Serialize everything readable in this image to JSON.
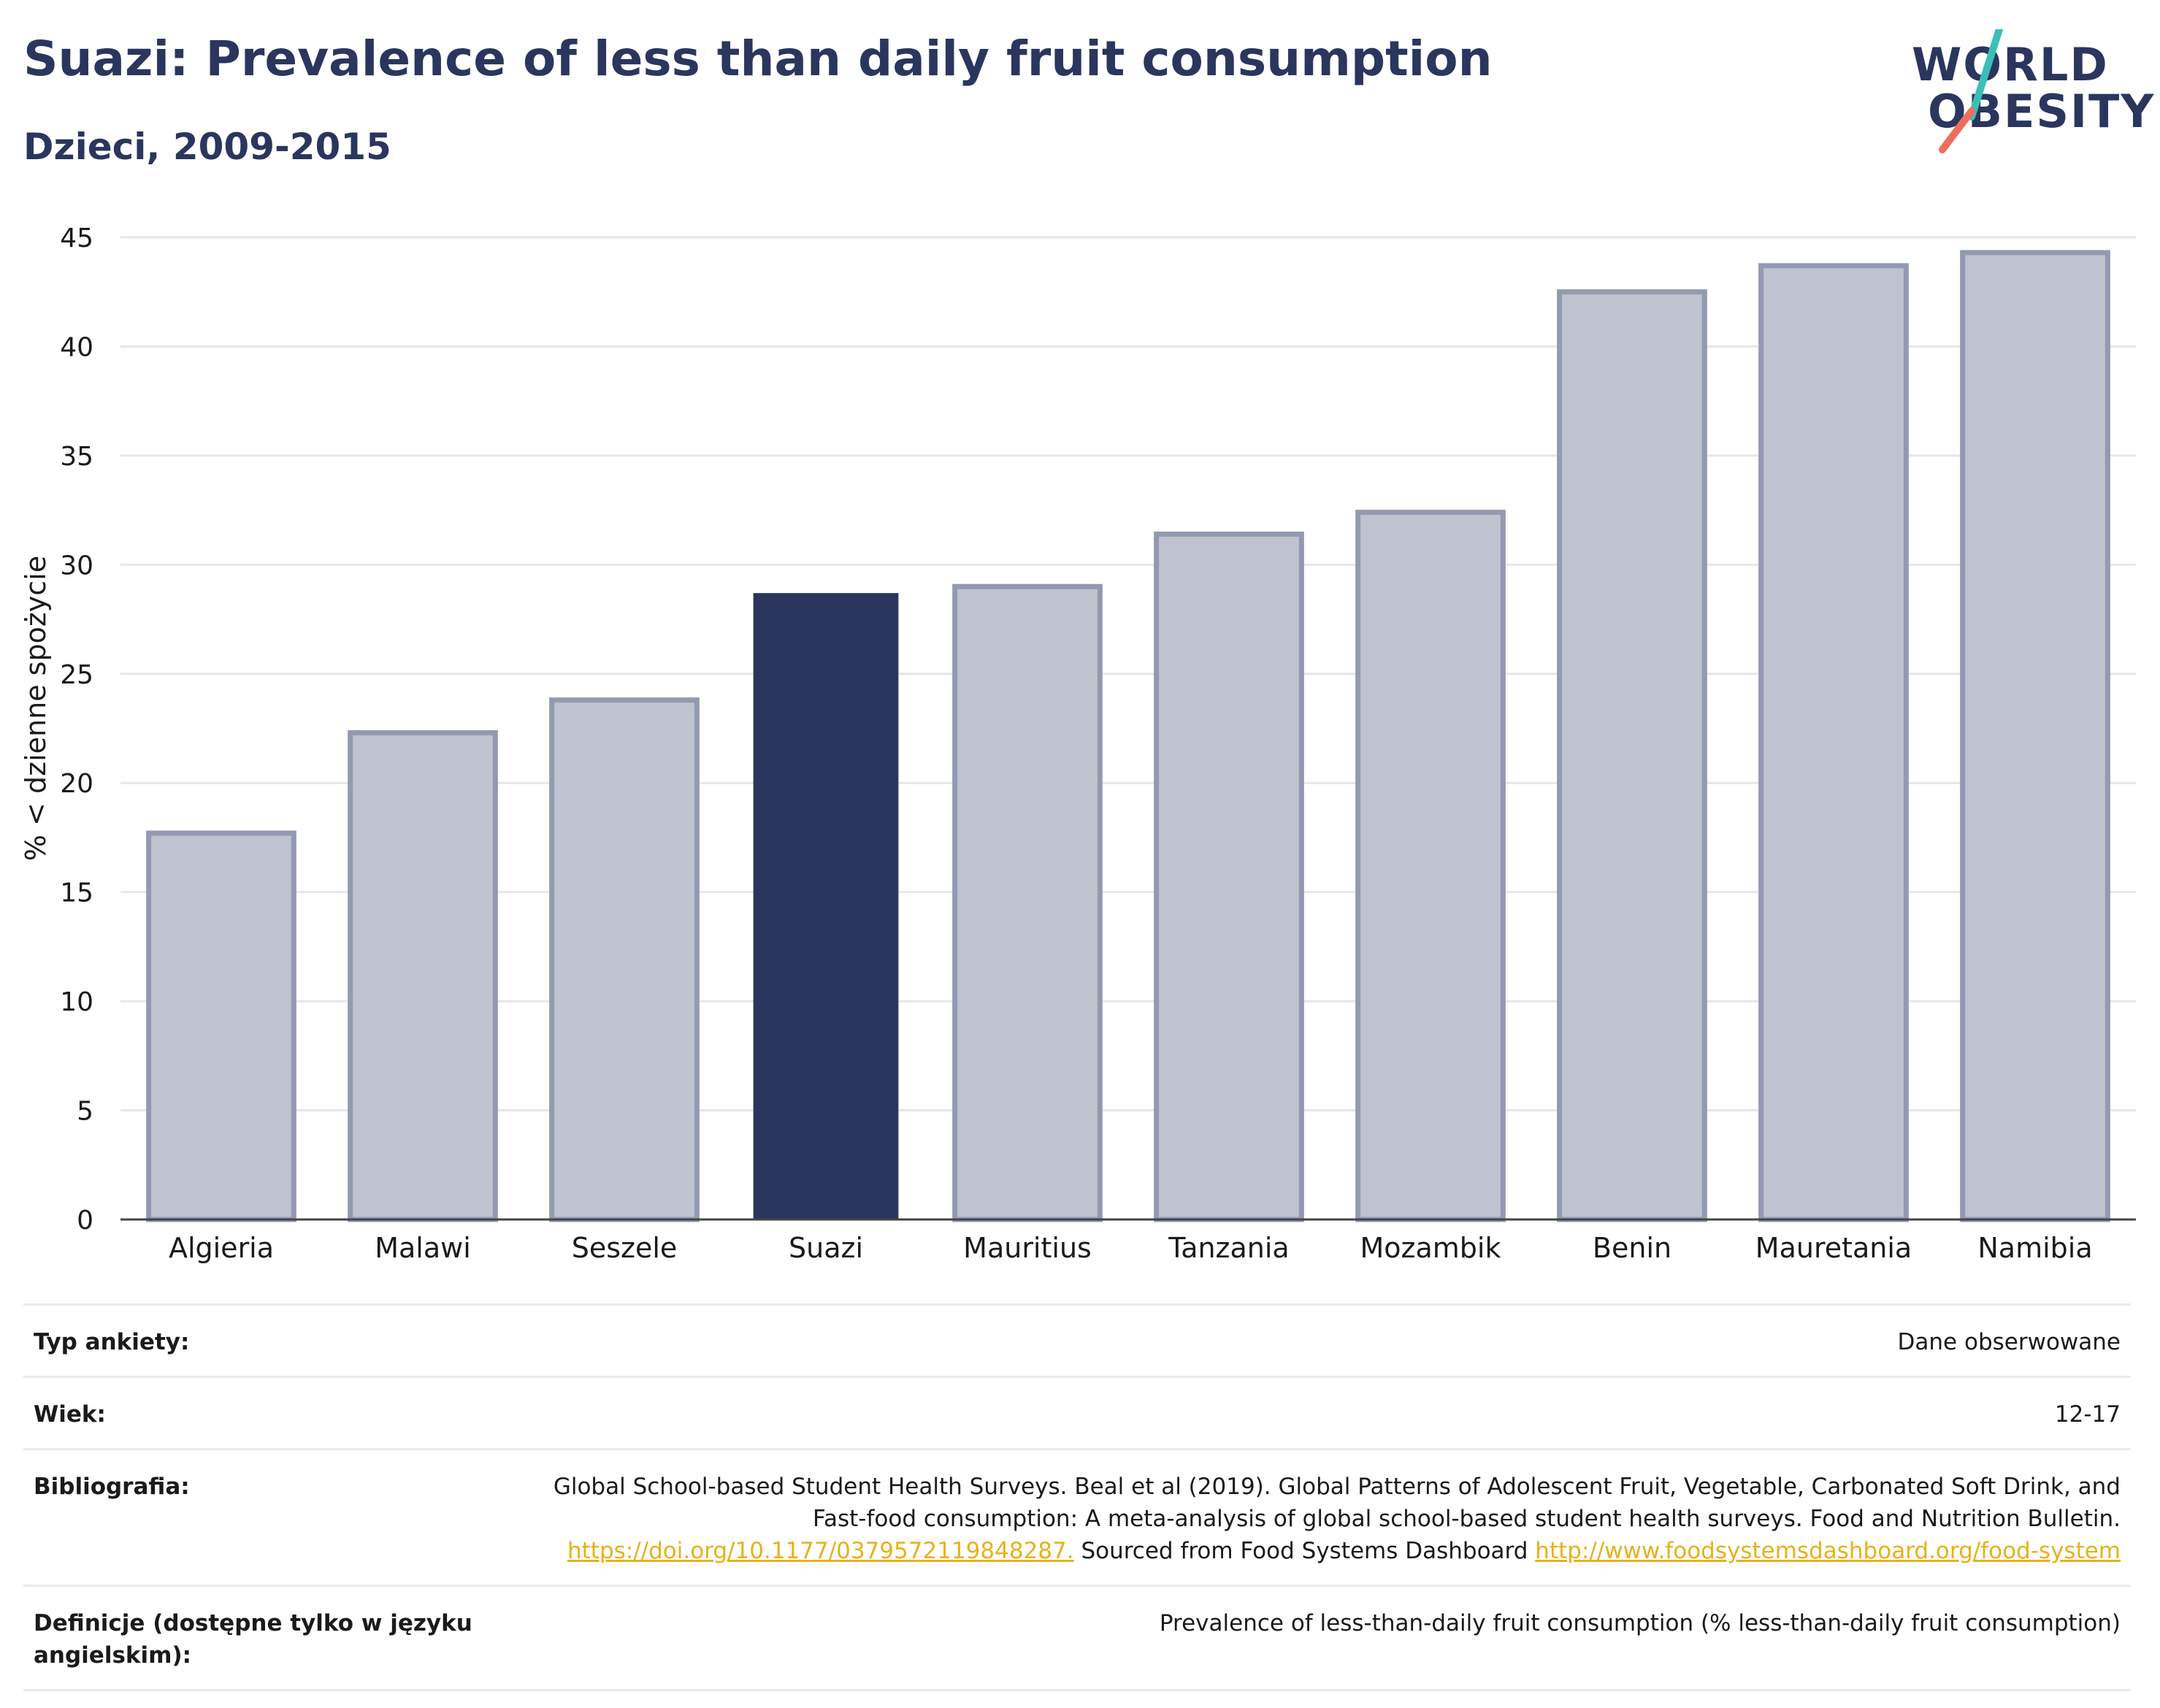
{
  "title": "Suazi: Prevalence of less than daily fruit consumption",
  "subtitle": "Dzieci, 2009-2015",
  "logo": {
    "line1": "WORLD",
    "line2": "OBESITY",
    "slash_color_top": "#3cbfb7",
    "slash_color_bottom": "#ef6f5e"
  },
  "colors": {
    "bar": "#bfc3cf",
    "bar_border": "#9399b0",
    "highlight": "#2a365e",
    "grid": "#e6e7ec",
    "text": "#1a1a1a",
    "link": "#e7b21a"
  },
  "chart_data": {
    "type": "bar",
    "categories": [
      "Algieria",
      "Malawi",
      "Seszele",
      "Suazi",
      "Mauritius",
      "Tanzania",
      "Mozambik",
      "Benin",
      "Mauretania",
      "Namibia"
    ],
    "values": [
      17.7,
      22.3,
      23.8,
      28.7,
      29.0,
      31.4,
      32.4,
      42.5,
      43.7,
      44.3
    ],
    "highlight": "Suazi",
    "ylabel": "% < dzienne spożycie",
    "xlabel": "",
    "ylim": [
      0,
      45
    ],
    "yticks": [
      "0",
      "5",
      "10",
      "15",
      "20",
      "25",
      "30",
      "35",
      "40",
      "45"
    ],
    "grid": true
  },
  "meta": [
    {
      "label": "Typ ankiety:",
      "value": "Dane obserwowane"
    },
    {
      "label": "Wiek:",
      "value": "12-17"
    },
    {
      "label": "Bibliografia:",
      "value_text_1": "Global School-based Student Health Surveys. Beal et al (2019). Global Patterns of Adolescent Fruit, Vegetable, Carbonated Soft Drink, and Fast-food consumption: A meta-analysis of global school-based student health surveys. Food and Nutrition Bulletin.",
      "link_1": "https://doi.org/10.1177/0379572119848287.",
      "value_text_2": "Sourced from Food Systems Dashboard",
      "link_2": "http://www.foodsystemsdashboard.org/food-system"
    },
    {
      "label": "Definicje (dostępne tylko w języku angielskim):",
      "value": "Prevalence of less-than-daily fruit consumption (% less-than-daily fruit consumption)"
    }
  ]
}
